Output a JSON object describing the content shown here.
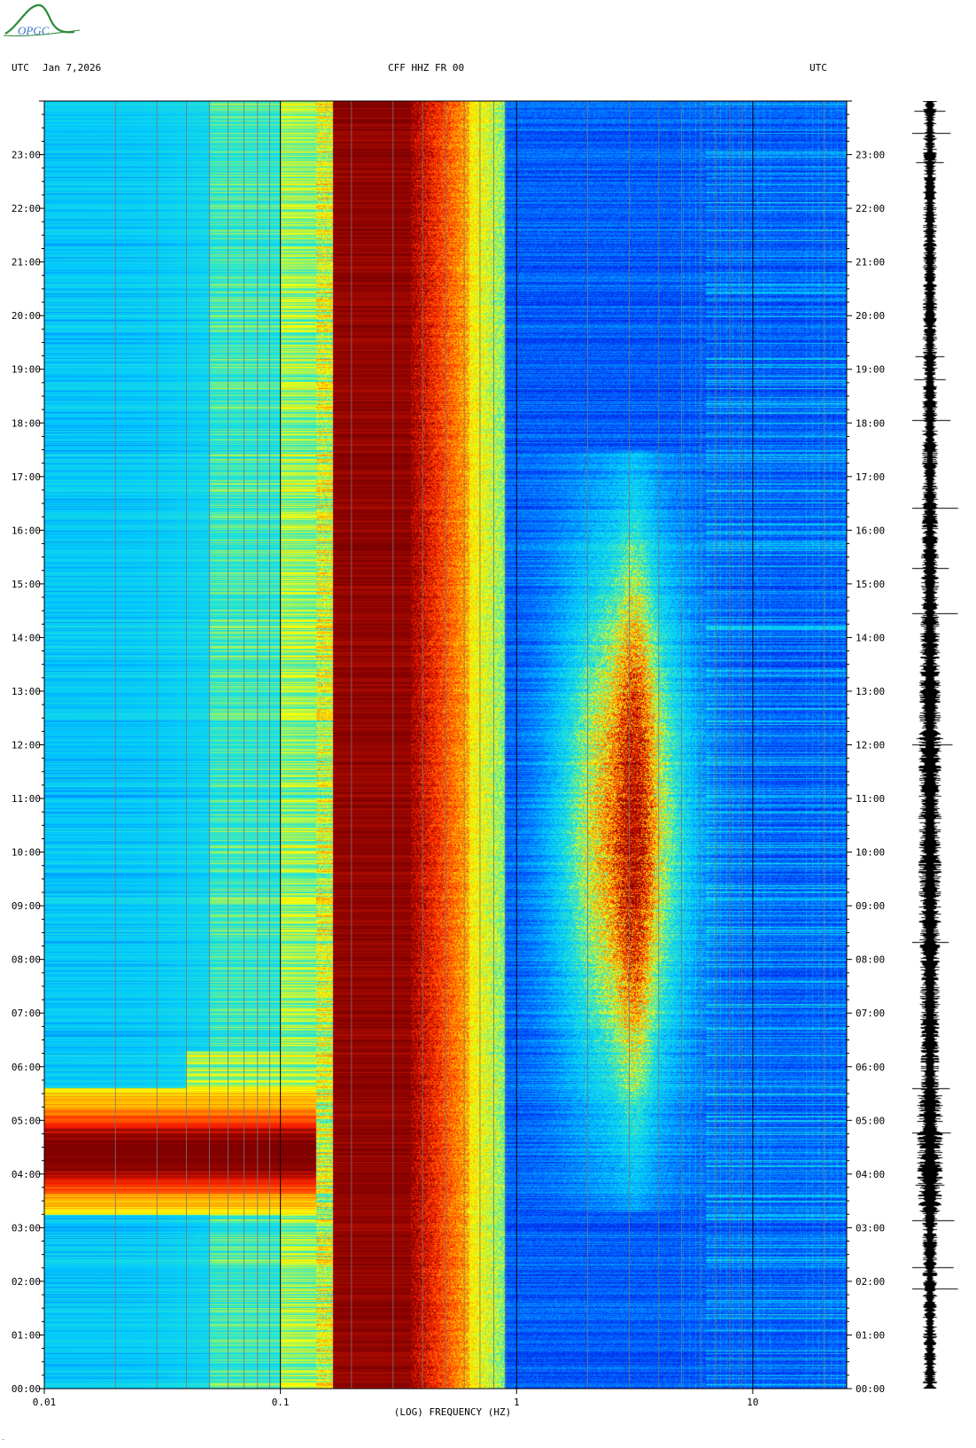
{
  "logo": {
    "text": "OPGC",
    "icon": "opgc-logo"
  },
  "header": {
    "left_tz": "UTC",
    "date": "Jan 7,2026",
    "station": "CFF HHZ FR 00",
    "right_tz": "UTC"
  },
  "chart_data": {
    "type": "heatmap",
    "title": "CFF HHZ FR 00",
    "xlabel": "(LOG) FREQUENCY (HZ)",
    "ylabel": "UTC",
    "x_scale": "log",
    "xlim": [
      0.01,
      25
    ],
    "x_ticks": [
      {
        "value": 0.01,
        "label": "0.01"
      },
      {
        "value": 0.1,
        "label": "0.1"
      },
      {
        "value": 1,
        "label": "1"
      },
      {
        "value": 10,
        "label": "10"
      }
    ],
    "ylim": [
      "00:00",
      "24:00"
    ],
    "y_ticks": [
      "00:00",
      "01:00",
      "02:00",
      "03:00",
      "04:00",
      "05:00",
      "06:00",
      "07:00",
      "08:00",
      "09:00",
      "10:00",
      "11:00",
      "12:00",
      "13:00",
      "14:00",
      "15:00",
      "16:00",
      "17:00",
      "18:00",
      "19:00",
      "20:00",
      "21:00",
      "22:00",
      "23:00"
    ],
    "colormap": [
      "#0000cc",
      "#0055ff",
      "#00c8ff",
      "#28e6d2",
      "#ffff00",
      "#ff8c00",
      "#ff2000",
      "#800000"
    ],
    "features": [
      {
        "name": "low-frequency band",
        "freq_hz": [
          0.01,
          0.14
        ],
        "level": "cyan"
      },
      {
        "name": "microseism peak",
        "freq_hz": [
          0.14,
          0.3
        ],
        "level": "dark-red"
      },
      {
        "name": "secondary microseism edge",
        "freq_hz": [
          0.3,
          0.9
        ],
        "level": "red-yellow"
      },
      {
        "name": "night high band",
        "freq_hz": [
          0.01,
          0.13
        ],
        "time": [
          "03:15",
          "05:45"
        ],
        "level": "dark-red"
      },
      {
        "name": "daytime cultural noise",
        "freq_hz": [
          1.5,
          5
        ],
        "time": [
          "06:30",
          "16:00"
        ],
        "level": "yellow-red"
      }
    ]
  },
  "trace": {
    "label": "seismogram trace",
    "color": "#000000"
  },
  "footer": {
    "mark": "."
  }
}
